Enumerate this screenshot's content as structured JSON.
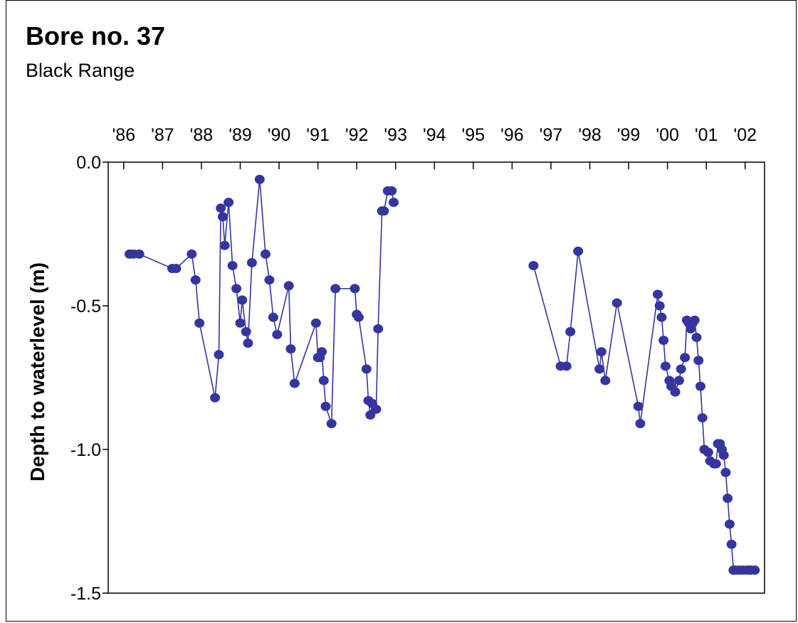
{
  "chart_data": {
    "type": "line",
    "title": "Bore no. 37",
    "subtitle": "Black Range",
    "xlabel": "",
    "ylabel": "Depth to waterlevel (m)",
    "x_axis_position": "top",
    "x_tick_labels": [
      "'86",
      "'87",
      "'88",
      "'89",
      "'90",
      "'91",
      "'92",
      "'93",
      "'94",
      "'95",
      "'96",
      "'97",
      "'98",
      "'99",
      "'00",
      "'01",
      "'02"
    ],
    "x_range": [
      1985.6,
      2002.5
    ],
    "y_ticks": [
      0.0,
      -0.5,
      -1.0,
      -1.5
    ],
    "y_tick_labels": [
      "0.0",
      "-0.5",
      "-1.0",
      "-1.5"
    ],
    "ylim": [
      -1.5,
      0.0
    ],
    "grid": false,
    "colors": {
      "series": "#3535a0"
    },
    "series": [
      {
        "name": "",
        "x": [
          1986.15,
          1986.25,
          1986.4,
          1987.25,
          1987.35,
          1987.75,
          1987.85,
          1987.95,
          1988.35,
          1988.45,
          1988.5,
          1988.55,
          1988.6,
          1988.7,
          1988.8,
          1988.9,
          1989.0,
          1989.05,
          1989.15,
          1989.2,
          1989.3,
          1989.5,
          1989.65,
          1989.75,
          1989.85,
          1989.95,
          1990.25,
          1990.3,
          1990.4,
          1990.95,
          1991.0,
          1991.05,
          1991.1,
          1991.15,
          1991.2,
          1991.35,
          1991.45,
          1991.95,
          1992.0,
          1992.05,
          1992.25,
          1992.3,
          1992.35,
          1992.4,
          1992.5,
          1992.55,
          1992.65,
          1992.7,
          1992.8,
          1992.9,
          1992.95,
          1996.55,
          1997.25,
          1997.4,
          1997.5,
          1997.7,
          1998.25,
          1998.3,
          1998.4,
          1998.7,
          1999.25,
          1999.3,
          1999.75,
          1999.8,
          1999.85,
          1999.9,
          1999.95,
          2000.05,
          2000.1,
          2000.2,
          2000.3,
          2000.35,
          2000.45,
          2000.5,
          2000.55,
          2000.6,
          2000.65,
          2000.7,
          2000.75,
          2000.8,
          2000.85,
          2000.9,
          2000.95,
          2001.05,
          2001.1,
          2001.2,
          2001.25,
          2001.3,
          2001.35,
          2001.4,
          2001.45,
          2001.5,
          2001.55,
          2001.6,
          2001.65,
          2001.7,
          2001.75,
          2001.85,
          2001.95,
          2002.05,
          2002.1,
          2002.15,
          2002.25
        ],
        "y": [
          -0.32,
          -0.32,
          -0.32,
          -0.37,
          -0.37,
          -0.32,
          -0.41,
          -0.56,
          -0.82,
          -0.67,
          -0.16,
          -0.19,
          -0.29,
          -0.14,
          -0.36,
          -0.44,
          -0.56,
          -0.48,
          -0.59,
          -0.63,
          -0.35,
          -0.06,
          -0.32,
          -0.41,
          -0.54,
          -0.6,
          -0.43,
          -0.65,
          -0.77,
          -0.56,
          -0.68,
          -0.68,
          -0.66,
          -0.76,
          -0.85,
          -0.91,
          -0.44,
          -0.44,
          -0.53,
          -0.54,
          -0.72,
          -0.83,
          -0.88,
          -0.84,
          -0.86,
          -0.58,
          -0.17,
          -0.17,
          -0.1,
          -0.1,
          -0.14,
          -0.36,
          -0.71,
          -0.71,
          -0.59,
          -0.31,
          -0.72,
          -0.66,
          -0.76,
          -0.49,
          -0.85,
          -0.91,
          -0.46,
          -0.5,
          -0.54,
          -0.62,
          -0.71,
          -0.76,
          -0.78,
          -0.8,
          -0.76,
          -0.72,
          -0.68,
          -0.55,
          -0.56,
          -0.58,
          -0.56,
          -0.55,
          -0.61,
          -0.69,
          -0.78,
          -0.89,
          -1.0,
          -1.01,
          -1.04,
          -1.05,
          -1.05,
          -0.98,
          -0.98,
          -1.0,
          -1.02,
          -1.08,
          -1.17,
          -1.26,
          -1.33,
          -1.42,
          -1.42,
          -1.42,
          -1.42,
          -1.42,
          -1.42,
          -1.42,
          -1.42
        ]
      }
    ]
  }
}
